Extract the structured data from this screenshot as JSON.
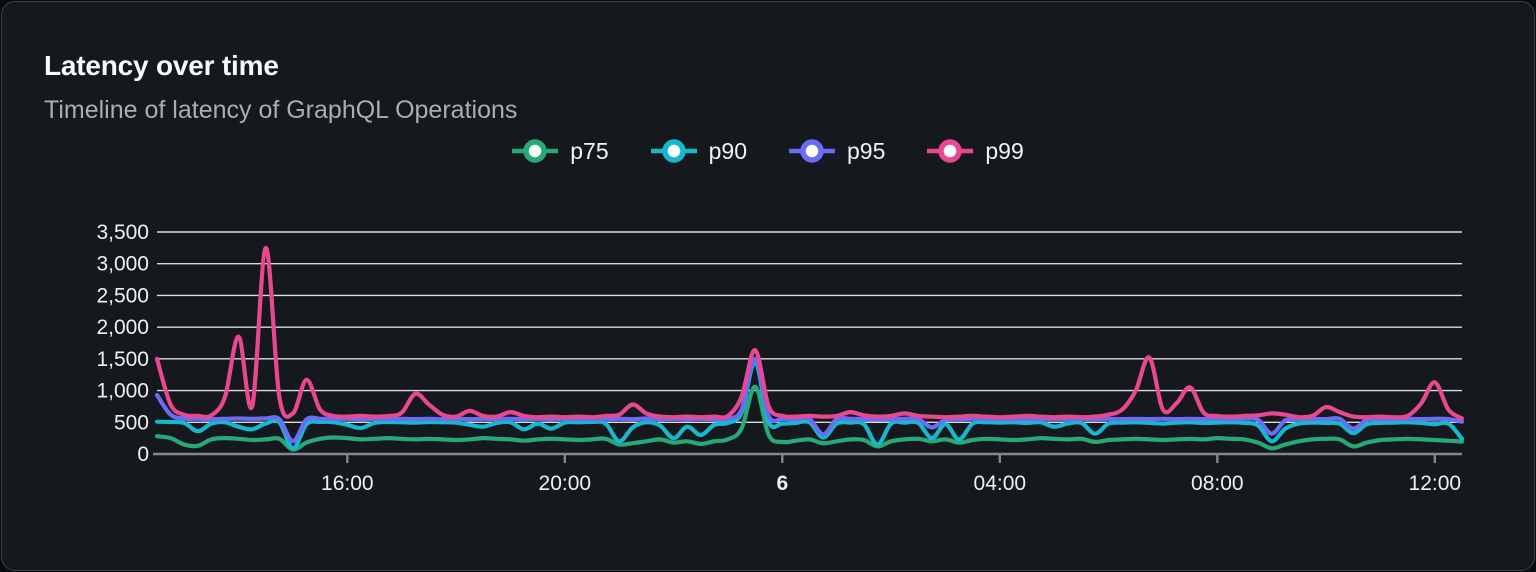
{
  "panel": {
    "title": "Latency over time",
    "subtitle": "Timeline of latency of GraphQL Operations"
  },
  "chart_data": {
    "type": "line",
    "title": "Latency over time",
    "subtitle": "Timeline of latency of GraphQL Operations",
    "grid": true,
    "legend_position": "top-center",
    "x_unit": "time (24h window)",
    "x_start_hour": 0,
    "x_step_hours": 0.25,
    "x_range_hours": [
      0,
      24
    ],
    "x_axis": {
      "ticks": [
        {
          "hour": 3.5,
          "label": "16:00",
          "emphasis": false
        },
        {
          "hour": 7.5,
          "label": "20:00",
          "emphasis": false
        },
        {
          "hour": 11.5,
          "label": "6",
          "emphasis": true
        },
        {
          "hour": 15.5,
          "label": "04:00",
          "emphasis": false
        },
        {
          "hour": 19.5,
          "label": "08:00",
          "emphasis": false
        },
        {
          "hour": 23.5,
          "label": "12:00",
          "emphasis": false
        }
      ]
    },
    "y_axis": {
      "min": 0,
      "max": 3500,
      "step": 500,
      "tick_labels": [
        "0",
        "500",
        "1,000",
        "1,500",
        "2,000",
        "2,500",
        "3,000",
        "3,500"
      ]
    },
    "series": [
      {
        "name": "p75",
        "color": "#26a877",
        "values": [
          280,
          250,
          150,
          130,
          230,
          250,
          240,
          220,
          230,
          240,
          70,
          180,
          240,
          260,
          250,
          230,
          240,
          250,
          240,
          230,
          240,
          230,
          220,
          230,
          250,
          240,
          230,
          210,
          230,
          240,
          230,
          220,
          230,
          240,
          150,
          170,
          200,
          230,
          180,
          200,
          160,
          200,
          230,
          400,
          1060,
          300,
          190,
          210,
          230,
          170,
          200,
          230,
          220,
          120,
          200,
          230,
          240,
          200,
          230,
          180,
          220,
          240,
          230,
          220,
          230,
          250,
          240,
          230,
          240,
          190,
          220,
          230,
          240,
          230,
          220,
          230,
          240,
          230,
          250,
          240,
          230,
          180,
          90,
          150,
          200,
          230,
          240,
          230,
          120,
          180,
          220,
          230,
          240,
          230,
          220,
          210,
          195
        ]
      },
      {
        "name": "p90",
        "color": "#17b8cd",
        "values": [
          510,
          505,
          490,
          360,
          480,
          500,
          430,
          390,
          480,
          500,
          90,
          470,
          505,
          500,
          460,
          410,
          490,
          505,
          500,
          495,
          505,
          500,
          495,
          460,
          430,
          490,
          500,
          390,
          480,
          400,
          495,
          500,
          505,
          480,
          200,
          420,
          500,
          450,
          250,
          430,
          300,
          460,
          490,
          650,
          1450,
          500,
          480,
          490,
          500,
          260,
          480,
          495,
          470,
          150,
          480,
          495,
          490,
          250,
          470,
          230,
          480,
          500,
          495,
          500,
          490,
          500,
          430,
          480,
          490,
          320,
          480,
          495,
          500,
          490,
          480,
          495,
          500,
          490,
          495,
          500,
          490,
          450,
          200,
          400,
          480,
          495,
          490,
          480,
          330,
          470,
          490,
          495,
          500,
          490,
          470,
          480,
          240
        ]
      },
      {
        "name": "p95",
        "color": "#6a6cf5",
        "values": [
          930,
          620,
          560,
          555,
          550,
          555,
          560,
          555,
          560,
          550,
          200,
          545,
          555,
          550,
          555,
          550,
          555,
          550,
          555,
          550,
          555,
          550,
          555,
          550,
          555,
          550,
          555,
          550,
          555,
          550,
          555,
          550,
          555,
          550,
          555,
          550,
          560,
          550,
          555,
          550,
          555,
          550,
          555,
          700,
          1500,
          600,
          555,
          550,
          555,
          310,
          550,
          555,
          550,
          545,
          550,
          555,
          550,
          420,
          540,
          550,
          555,
          550,
          555,
          550,
          555,
          550,
          555,
          550,
          555,
          550,
          555,
          550,
          555,
          550,
          555,
          550,
          555,
          550,
          555,
          550,
          555,
          540,
          320,
          530,
          550,
          555,
          550,
          555,
          400,
          540,
          550,
          555,
          555,
          550,
          555,
          550,
          510
        ]
      },
      {
        "name": "p99",
        "color": "#e8488f",
        "values": [
          1500,
          780,
          620,
          600,
          610,
          900,
          1850,
          750,
          3250,
          900,
          640,
          1170,
          700,
          600,
          590,
          600,
          590,
          600,
          650,
          950,
          780,
          620,
          590,
          680,
          600,
          590,
          660,
          600,
          580,
          590,
          580,
          590,
          580,
          600,
          620,
          780,
          640,
          590,
          580,
          590,
          580,
          590,
          600,
          900,
          1640,
          750,
          600,
          590,
          600,
          590,
          600,
          660,
          610,
          590,
          600,
          640,
          600,
          590,
          580,
          590,
          600,
          590,
          580,
          590,
          600,
          590,
          580,
          590,
          580,
          590,
          620,
          700,
          1000,
          1520,
          700,
          800,
          1050,
          650,
          600,
          590,
          600,
          610,
          640,
          620,
          580,
          600,
          740,
          660,
          590,
          580,
          590,
          580,
          600,
          800,
          1130,
          700,
          560
        ]
      }
    ],
    "colors": {
      "grid_line": "#d9dce2",
      "axis_line": "#85878d",
      "tick_label": "#eef0f2",
      "panel_background": "#15181d",
      "panel_border": "#3c4148"
    }
  }
}
